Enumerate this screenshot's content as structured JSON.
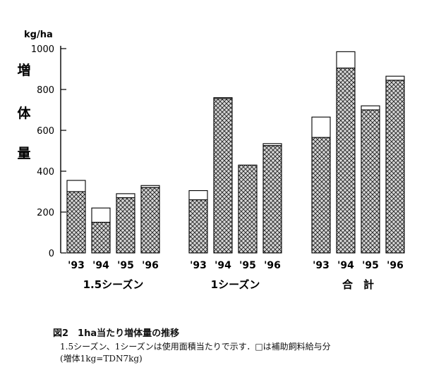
{
  "chart_data": {
    "type": "bar",
    "stacked": true,
    "ylabel_unit": "kg/ha",
    "ylabel": [
      "増",
      "体",
      "量"
    ],
    "ylim": [
      0,
      1000
    ],
    "yticks": [
      0,
      200,
      400,
      600,
      800,
      1000
    ],
    "groups": [
      {
        "label": "1.5シーズン",
        "categories": [
          "'93",
          "'94",
          "'95",
          "'96"
        ],
        "base": [
          300,
          150,
          270,
          320
        ],
        "total": [
          355,
          220,
          290,
          330
        ]
      },
      {
        "label": "1シーズン",
        "categories": [
          "'93",
          "'94",
          "'95",
          "'96"
        ],
        "base": [
          260,
          755,
          430,
          525
        ],
        "total": [
          305,
          760,
          430,
          535
        ]
      },
      {
        "label": "合　計",
        "categories": [
          "'93",
          "'94",
          "'95",
          "'96"
        ],
        "base": [
          565,
          905,
          700,
          845
        ],
        "total": [
          665,
          985,
          720,
          865
        ]
      }
    ],
    "series": [
      {
        "name": "",
        "pattern": "crosshatch",
        "color": "#555555"
      },
      {
        "name": "補助飼料給与分",
        "pattern": "none",
        "color": "#ffffff"
      }
    ],
    "grid": false,
    "legend": "none"
  },
  "caption": {
    "title": "図2　1ha当たり増体量の推移",
    "line1": "1.5シーズン、1シーズンは使用面積当たりで示す．□は補助飼料給与分",
    "line2": "(増体1kg=TDN7kg)"
  }
}
